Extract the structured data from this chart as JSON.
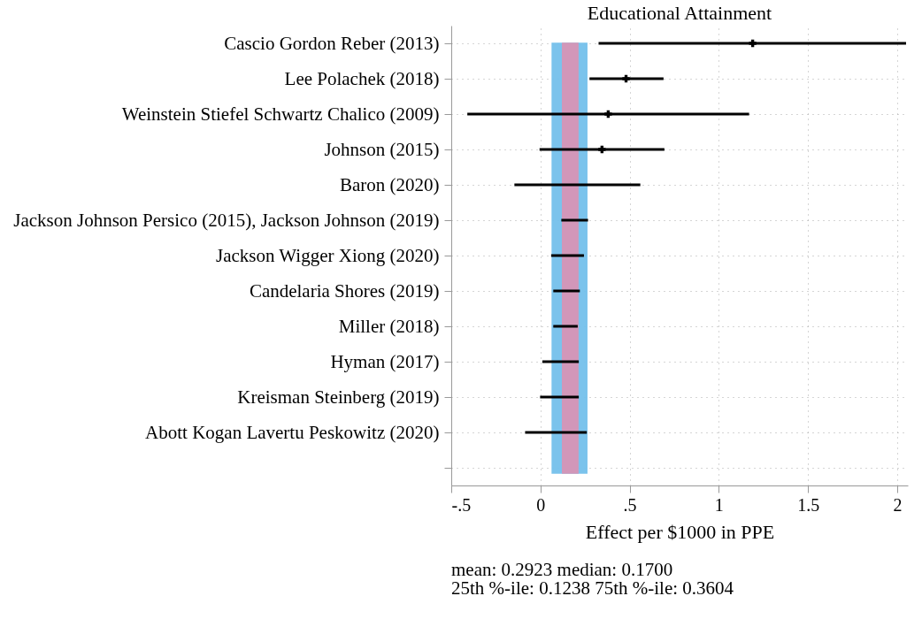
{
  "chart_data": {
    "type": "bar",
    "orientation": "horizontal",
    "title": "Educational Attainment",
    "xlabel": "Effect per $1000 in PPE",
    "categories": [
      "Cascio Gordon Reber (2013)",
      "Lee Polachek (2018)",
      "Weinstein Stiefel Schwartz Chalico (2009)",
      "Johnson (2015)",
      "Baron (2020)",
      "Jackson Johnson Persico (2015), Jackson Johnson (2019)",
      "Jackson Wigger Xiong (2020)",
      "Candelaria Shores (2019)",
      "Miller (2018)",
      "Hyman (2017)",
      "Kreisman Steinberg (2019)",
      "Abott Kogan Lavertu Peskowitz (2020)"
    ],
    "series": [
      {
        "color": "#000000",
        "base": [
          0.326,
          0.275,
          -0.41,
          -0.005,
          -0.146,
          0.117,
          0.06,
          0.072,
          0.072,
          0.011,
          -0.002,
          -0.086
        ],
        "values": [
          1.724,
          0.415,
          1.58,
          0.7,
          0.706,
          0.15,
          0.184,
          0.149,
          0.137,
          0.204,
          0.217,
          0.346
        ]
      },
      {
        "type": "scatter",
        "color": "#000000",
        "values": [
          1.19,
          0.48,
          0.38,
          0.345,
          null,
          null,
          null,
          null,
          null,
          null,
          null,
          null
        ]
      }
    ],
    "xlim": [
      -0.5,
      2.06
    ],
    "xticks": [
      {
        "value": -0.5,
        "label": "-.5"
      },
      0,
      {
        "value": 0.5,
        "label": ".5"
      },
      1,
      1.5,
      2
    ],
    "bands": [
      {
        "axis": "x",
        "from": 0.066,
        "to": 0.26,
        "color": "#74c0ec"
      },
      {
        "axis": "x",
        "from": 0.124,
        "to": 0.21,
        "color": "#d795b7"
      }
    ],
    "grid": true,
    "marker": "cross",
    "annotations": [
      "mean: 0.2923 median: 0.1700",
      "25th %-ile: 0.1238 75th %-ile: 0.3604"
    ]
  }
}
